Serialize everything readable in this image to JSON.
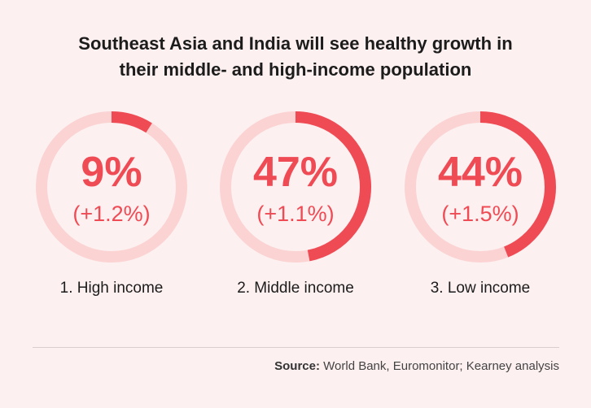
{
  "chart_data": {
    "type": "donut",
    "title": "Southeast Asia and India will see healthy growth in their middle- and high-income population",
    "title_lines": [
      "Southeast Asia and India will see healthy growth in",
      "their middle- and high-income population"
    ],
    "segments": [
      {
        "label": "1. High income",
        "value": 9,
        "value_text": "9%",
        "change_text": "(+1.2%)"
      },
      {
        "label": "2. Middle income",
        "value": 47,
        "value_text": "47%",
        "change_text": "(+1.1%)"
      },
      {
        "label": "3. Low income",
        "value": 44,
        "value_text": "44%",
        "change_text": "(+1.5%)"
      }
    ],
    "colors": {
      "fill": "#ef4b55",
      "track": "#fbd3d3",
      "background": "#fdf0f0"
    }
  },
  "source": {
    "label": "Source:",
    "text": "World Bank, Euromonitor; Kearney analysis"
  }
}
